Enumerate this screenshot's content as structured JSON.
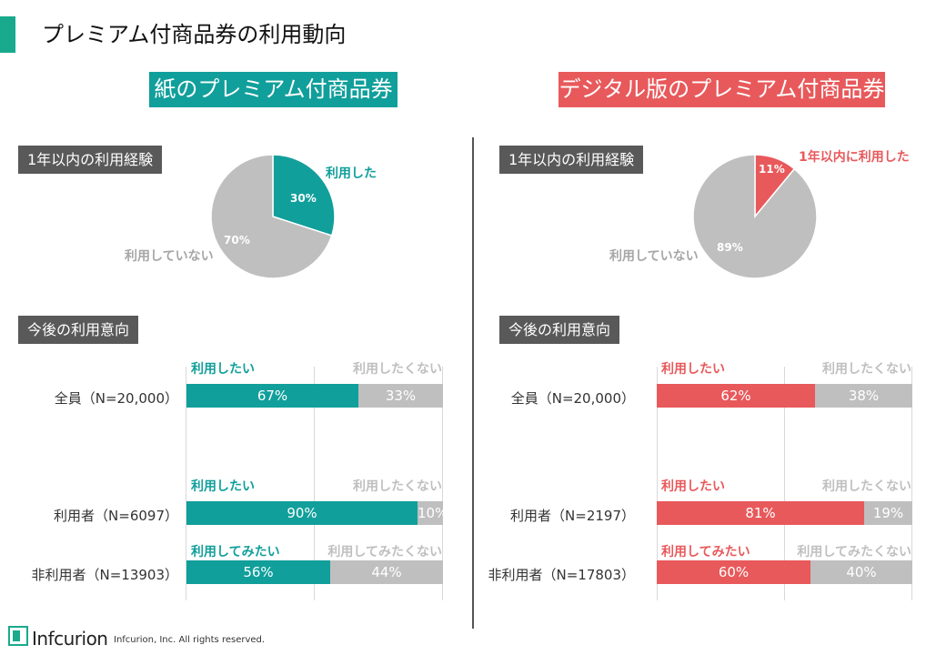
{
  "page_title": "プレミアム付商品券の利用動向",
  "colors": {
    "accent": "#19aa8d",
    "paper": "#119f9b",
    "digital": "#e8595b",
    "gray": "#bfbfbf",
    "box": "#595959"
  },
  "footer": {
    "logo": "Infcurion",
    "copyright": "Infcurion, Inc.  All rights reserved."
  },
  "paper": {
    "banner": "紙のプレミアム付商品券",
    "experience_title": "1年以内の利用経験",
    "intent_title": "今後の利用意向",
    "rows": [
      {
        "label": "全員（N=20,000）",
        "yes_label": "利用したい",
        "no_label": "利用したくない",
        "yes_pct": "67%",
        "no_pct": "33%"
      },
      {
        "label": "利用者（N=6097）",
        "yes_label": "利用したい",
        "no_label": "利用したくない",
        "yes_pct": "90%",
        "no_pct": "10%"
      },
      {
        "label": "非利用者（N=13903）",
        "yes_label": "利用してみたい",
        "no_label": "利用してみたくない",
        "yes_pct": "56%",
        "no_pct": "44%"
      }
    ]
  },
  "digital": {
    "banner": "デジタル版のプレミアム付商品券",
    "experience_title": "1年以内の利用経験",
    "intent_title": "今後の利用意向",
    "rows": [
      {
        "label": "全員（N=20,000）",
        "yes_label": "利用したい",
        "no_label": "利用したくない",
        "yes_pct": "62%",
        "no_pct": "38%"
      },
      {
        "label": "利用者（N=2197）",
        "yes_label": "利用したい",
        "no_label": "利用したくない",
        "yes_pct": "81%",
        "no_pct": "19%"
      },
      {
        "label": "非利用者（N=17803）",
        "yes_label": "利用してみたい",
        "no_label": "利用してみたくない",
        "yes_pct": "60%",
        "no_pct": "40%"
      }
    ]
  },
  "chart_data": [
    {
      "type": "pie",
      "title": "1年以内の利用経験（紙のプレミアム付商品券）",
      "labels": [
        "利用した",
        "利用していない"
      ],
      "values": [
        30,
        70
      ],
      "value_labels": [
        "30%",
        "70%"
      ],
      "colors": [
        "#119f9b",
        "#bfbfbf"
      ]
    },
    {
      "type": "pie",
      "title": "1年以内の利用経験（デジタル版のプレミアム付商品券）",
      "labels": [
        "1年以内に利用した",
        "利用していない"
      ],
      "values": [
        11,
        89
      ],
      "value_labels": [
        "11%",
        "89%"
      ],
      "colors": [
        "#e8595b",
        "#bfbfbf"
      ]
    },
    {
      "type": "bar",
      "orientation": "horizontal-stacked",
      "title": "今後の利用意向（紙のプレミアム付商品券）",
      "categories": [
        "全員（N=20,000）",
        "利用者（N=6097）",
        "非利用者（N=13903）"
      ],
      "series": [
        {
          "name": "利用したい / 利用してみたい",
          "values": [
            67,
            90,
            56
          ]
        },
        {
          "name": "利用したくない / 利用してみたくない",
          "values": [
            33,
            10,
            44
          ]
        }
      ],
      "xlim": [
        0,
        100
      ]
    },
    {
      "type": "bar",
      "orientation": "horizontal-stacked",
      "title": "今後の利用意向（デジタル版のプレミアム付商品券）",
      "categories": [
        "全員（N=20,000）",
        "利用者（N=2197）",
        "非利用者（N=17803）"
      ],
      "series": [
        {
          "name": "利用したい / 利用してみたい",
          "values": [
            62,
            81,
            60
          ]
        },
        {
          "name": "利用したくない / 利用してみたくない",
          "values": [
            38,
            19,
            40
          ]
        }
      ],
      "xlim": [
        0,
        100
      ]
    }
  ]
}
